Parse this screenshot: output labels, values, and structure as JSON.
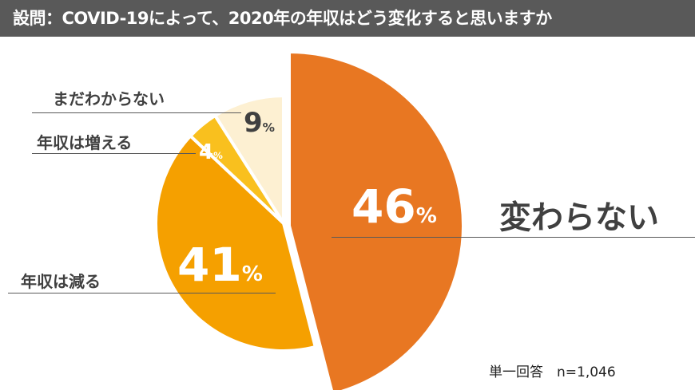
{
  "chart_data": {
    "type": "pie",
    "title": "設問：COVID-19によって、2020年の年収はどう変化すると思いますか",
    "slices": [
      {
        "label": "変わらない",
        "value": 46,
        "color": "#E87722",
        "exploded": true
      },
      {
        "label": "年収は減る",
        "value": 41,
        "color": "#F5A000"
      },
      {
        "label": "年収は増える",
        "value": 4,
        "color": "#F9C01E"
      },
      {
        "label": "まだわからない",
        "value": 9,
        "color": "#FDF0D2"
      }
    ],
    "value_suffix": "%",
    "note": "単一回答　n=1,046"
  }
}
